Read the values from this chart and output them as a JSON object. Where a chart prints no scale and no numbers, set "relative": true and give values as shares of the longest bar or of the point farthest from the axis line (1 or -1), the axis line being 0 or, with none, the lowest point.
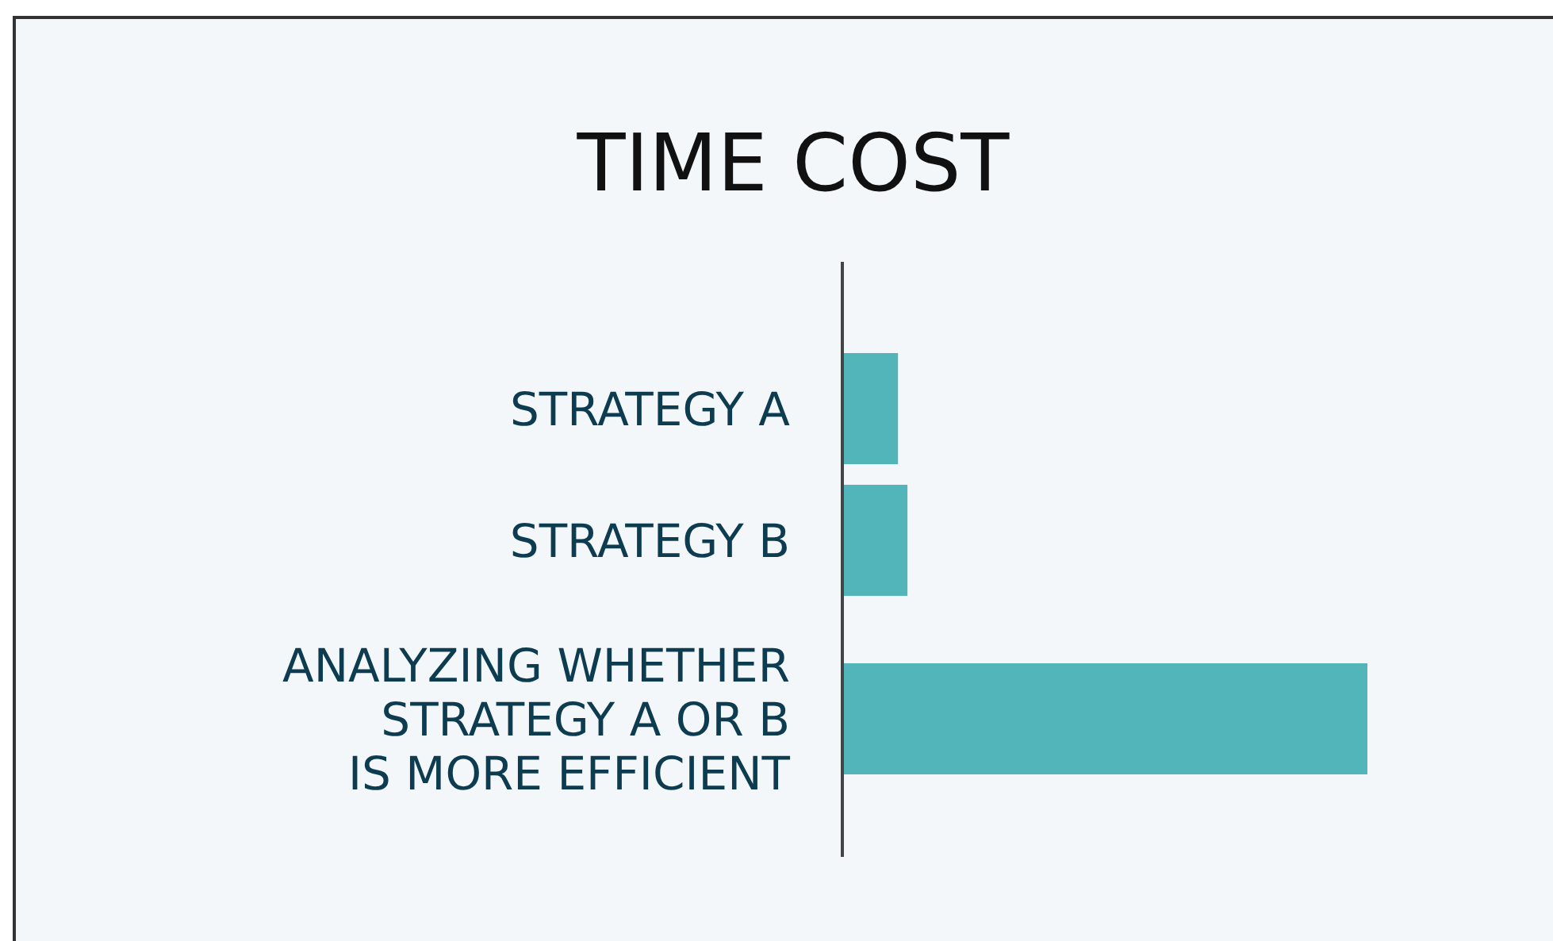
{
  "chart_data": {
    "type": "bar",
    "title": "TIME COST",
    "orientation": "horizontal",
    "relative": true,
    "categories": [
      "STRATEGY A",
      "STRATEGY B",
      "ANALYZING WHETHER STRATEGY A OR B IS MORE EFFICIENT"
    ],
    "values": [
      0.106,
      0.124,
      1
    ],
    "color": "#52b5b9"
  }
}
